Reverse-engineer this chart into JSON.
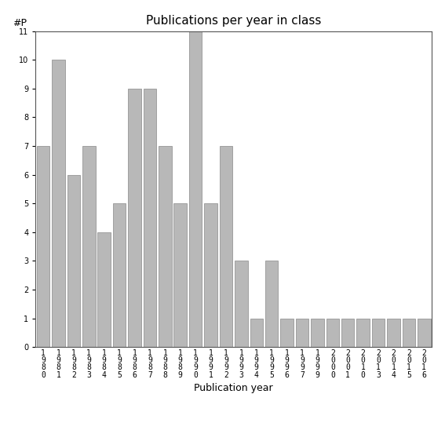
{
  "categories": [
    "1980",
    "1981",
    "1982",
    "1983",
    "1984",
    "1985",
    "1986",
    "1987",
    "1988",
    "1989",
    "1990",
    "1991",
    "1992",
    "1993",
    "1994",
    "1995",
    "1996",
    "1997",
    "1999",
    "2000",
    "2001",
    "2010",
    "2013",
    "2014",
    "2015",
    "2016"
  ],
  "values": [
    7,
    10,
    6,
    7,
    4,
    5,
    9,
    9,
    7,
    5,
    11,
    5,
    7,
    3,
    1,
    3,
    1,
    1,
    1,
    1,
    1,
    1,
    1,
    1,
    1,
    1
  ],
  "bar_color": "#b8b8b8",
  "bar_edgecolor": "#888888",
  "title": "Publications per year in class",
  "xlabel": "Publication year",
  "ylabel": "#P",
  "ylim": [
    0,
    11
  ],
  "yticks": [
    0,
    1,
    2,
    3,
    4,
    5,
    6,
    7,
    8,
    9,
    10,
    11
  ],
  "title_fontsize": 11,
  "label_fontsize": 9,
  "tick_fontsize": 7,
  "bg_color": "#ffffff"
}
